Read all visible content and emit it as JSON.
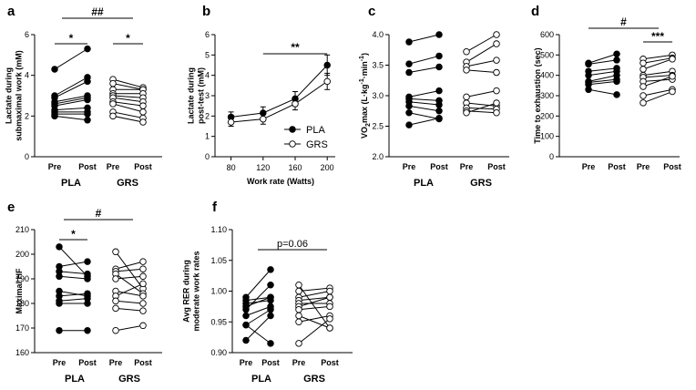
{
  "chart_data": [
    {
      "panel": "a",
      "type": "scatter",
      "ylabel": [
        "Lactate during",
        "submaximal work (mM)"
      ],
      "ylim": [
        0,
        6
      ],
      "yticks": [
        0,
        2,
        4,
        6
      ],
      "x_labels": [
        "Pre",
        "Post",
        "Pre",
        "Post"
      ],
      "groups": [
        "PLA",
        "GRS"
      ],
      "series": [
        {
          "name": "PLA",
          "fill": "#000000",
          "pairs": [
            [
              4.3,
              5.3
            ],
            [
              3.0,
              3.9
            ],
            [
              2.9,
              3.7
            ],
            [
              2.7,
              3.0
            ],
            [
              2.6,
              2.9
            ],
            [
              2.5,
              2.8
            ],
            [
              2.3,
              2.4
            ],
            [
              2.2,
              2.2
            ],
            [
              2.1,
              2.1
            ],
            [
              2.0,
              1.8
            ]
          ]
        },
        {
          "name": "GRS",
          "fill": "#ffffff",
          "pairs": [
            [
              3.8,
              3.4
            ],
            [
              3.6,
              3.3
            ],
            [
              3.3,
              3.3
            ],
            [
              3.1,
              3.1
            ],
            [
              3.0,
              2.9
            ],
            [
              2.9,
              2.7
            ],
            [
              2.7,
              2.5
            ],
            [
              2.6,
              2.2
            ],
            [
              2.2,
              1.9
            ],
            [
              2.0,
              1.7
            ]
          ]
        }
      ],
      "annotations": [
        {
          "text": "*",
          "kind": "within",
          "group": 0
        },
        {
          "text": "*",
          "kind": "within",
          "group": 1
        },
        {
          "text": "##",
          "kind": "between"
        }
      ]
    },
    {
      "panel": "b",
      "type": "line",
      "ylabel": [
        "Lactate during",
        "post-test (mM)"
      ],
      "xlabel": "Work rate (Watts)",
      "x": [
        80,
        120,
        160,
        200
      ],
      "xlim": [
        60,
        210
      ],
      "ylim": [
        0,
        6
      ],
      "yticks": [
        0,
        1,
        2,
        3,
        4,
        5,
        6
      ],
      "series": [
        {
          "name": "PLA",
          "fill": "#000000",
          "values": [
            1.95,
            2.15,
            2.85,
            4.5
          ],
          "err": [
            0.25,
            0.3,
            0.35,
            0.5
          ]
        },
        {
          "name": "GRS",
          "fill": "#ffffff",
          "values": [
            1.7,
            1.85,
            2.6,
            3.7
          ],
          "err": [
            0.2,
            0.25,
            0.3,
            0.4
          ]
        }
      ],
      "legend": [
        {
          "label": "PLA",
          "fill": "#000000"
        },
        {
          "label": "GRS",
          "fill": "#ffffff"
        }
      ],
      "annotations": [
        {
          "text": "**",
          "x1": 120,
          "x2": 200
        }
      ]
    },
    {
      "panel": "c",
      "type": "scatter",
      "ylabel_parts": {
        "a": "VO",
        "b": "2",
        "c": "max (L·kg",
        "d": "-1",
        "e": "·min",
        "f": "-1",
        "g": ")"
      },
      "ylim": [
        2.0,
        4.0
      ],
      "yticks": [
        2.0,
        2.5,
        3.0,
        3.5,
        4.0
      ],
      "tick_decimals": 1,
      "x_labels": [
        "Pre",
        "Post",
        "Pre",
        "Post"
      ],
      "groups": [
        "PLA",
        "GRS"
      ],
      "series": [
        {
          "name": "PLA",
          "fill": "#000000",
          "pairs": [
            [
              3.88,
              4.0
            ],
            [
              3.52,
              3.65
            ],
            [
              3.38,
              3.47
            ],
            [
              2.98,
              3.08
            ],
            [
              2.95,
              2.92
            ],
            [
              2.9,
              2.85
            ],
            [
              2.83,
              2.75
            ],
            [
              2.72,
              2.62
            ],
            [
              2.52,
              2.63
            ]
          ]
        },
        {
          "name": "GRS",
          "fill": "#ffffff",
          "pairs": [
            [
              3.72,
              4.0
            ],
            [
              3.55,
              3.85
            ],
            [
              3.48,
              3.58
            ],
            [
              3.42,
              3.38
            ],
            [
              2.98,
              3.08
            ],
            [
              2.88,
              2.83
            ],
            [
              2.8,
              2.78
            ],
            [
              2.75,
              2.72
            ],
            [
              2.72,
              2.88
            ]
          ]
        }
      ],
      "annotations": []
    },
    {
      "panel": "d",
      "type": "scatter",
      "ylabel": [
        "Time to exhaustion (sec)"
      ],
      "ylim": [
        0,
        600
      ],
      "yticks": [
        0,
        100,
        200,
        300,
        400,
        500,
        600
      ],
      "x_labels": [
        "Pre",
        "Post",
        "Pre",
        "Post"
      ],
      "groups": [],
      "series": [
        {
          "name": "PLA",
          "fill": "#000000",
          "pairs": [
            [
              460,
              505
            ],
            [
              455,
              475
            ],
            [
              420,
              435
            ],
            [
              400,
              420
            ],
            [
              370,
              400
            ],
            [
              365,
              380
            ],
            [
              355,
              370
            ],
            [
              330,
              305
            ]
          ]
        },
        {
          "name": "GRS",
          "fill": "#ffffff",
          "pairs": [
            [
              480,
              500
            ],
            [
              460,
              485
            ],
            [
              430,
              480
            ],
            [
              400,
              420
            ],
            [
              390,
              400
            ],
            [
              370,
              380
            ],
            [
              345,
              395
            ],
            [
              300,
              330
            ],
            [
              265,
              320
            ]
          ]
        }
      ],
      "annotations": [
        {
          "text": "***",
          "kind": "within",
          "group": 1
        },
        {
          "text": "#",
          "kind": "between"
        }
      ]
    },
    {
      "panel": "e",
      "type": "scatter",
      "ylabel": [
        "Maximal HF"
      ],
      "ylim": [
        160,
        210
      ],
      "yticks": [
        160,
        170,
        180,
        190,
        200,
        210
      ],
      "x_labels": [
        "Pre",
        "Post",
        "Pre",
        "Post"
      ],
      "groups": [
        "PLA",
        "GRS"
      ],
      "series": [
        {
          "name": "PLA",
          "fill": "#000000",
          "pairs": [
            [
              203,
              191
            ],
            [
              195,
              197
            ],
            [
              193,
              192
            ],
            [
              191,
              190
            ],
            [
              185,
              183
            ],
            [
              183,
              184
            ],
            [
              181,
              182
            ],
            [
              180,
              180
            ],
            [
              169,
              169
            ]
          ]
        },
        {
          "name": "GRS",
          "fill": "#ffffff",
          "pairs": [
            [
              201,
              186
            ],
            [
              194,
              197
            ],
            [
              193,
              194
            ],
            [
              192,
              184
            ],
            [
              190,
              191
            ],
            [
              185,
              183
            ],
            [
              183,
              188
            ],
            [
              181,
              180
            ],
            [
              178,
              177
            ],
            [
              169,
              171
            ]
          ]
        }
      ],
      "annotations": [
        {
          "text": "*",
          "kind": "within",
          "group": 0
        },
        {
          "text": "#",
          "kind": "between"
        }
      ]
    },
    {
      "panel": "f",
      "type": "scatter",
      "ylabel": [
        "Avg RER during",
        "moderate work rates"
      ],
      "ylim": [
        0.9,
        1.1
      ],
      "yticks": [
        0.9,
        0.95,
        1.0,
        1.05,
        1.1
      ],
      "tick_decimals": 2,
      "x_labels": [
        "Pre",
        "Post",
        "Pre",
        "Post"
      ],
      "groups": [
        "PLA",
        "GRS"
      ],
      "series": [
        {
          "name": "PLA",
          "fill": "#000000",
          "pairs": [
            [
              0.99,
              1.035
            ],
            [
              0.985,
              0.99
            ],
            [
              0.98,
              0.985
            ],
            [
              0.975,
              0.99
            ],
            [
              0.97,
              1.01
            ],
            [
              0.96,
              0.975
            ],
            [
              0.945,
              0.97
            ],
            [
              0.945,
              0.915
            ],
            [
              0.92,
              0.96
            ]
          ]
        },
        {
          "name": "GRS",
          "fill": "#ffffff",
          "pairs": [
            [
              1.01,
              0.94
            ],
            [
              1.0,
              1.005
            ],
            [
              0.99,
              1.0
            ],
            [
              0.985,
              0.99
            ],
            [
              0.98,
              0.98
            ],
            [
              0.975,
              0.99
            ],
            [
              0.97,
              0.975
            ],
            [
              0.96,
              0.94
            ],
            [
              0.95,
              0.96
            ],
            [
              0.915,
              0.955
            ]
          ]
        }
      ],
      "annotations": [
        {
          "text": "p=0.06",
          "kind": "between"
        }
      ]
    }
  ]
}
